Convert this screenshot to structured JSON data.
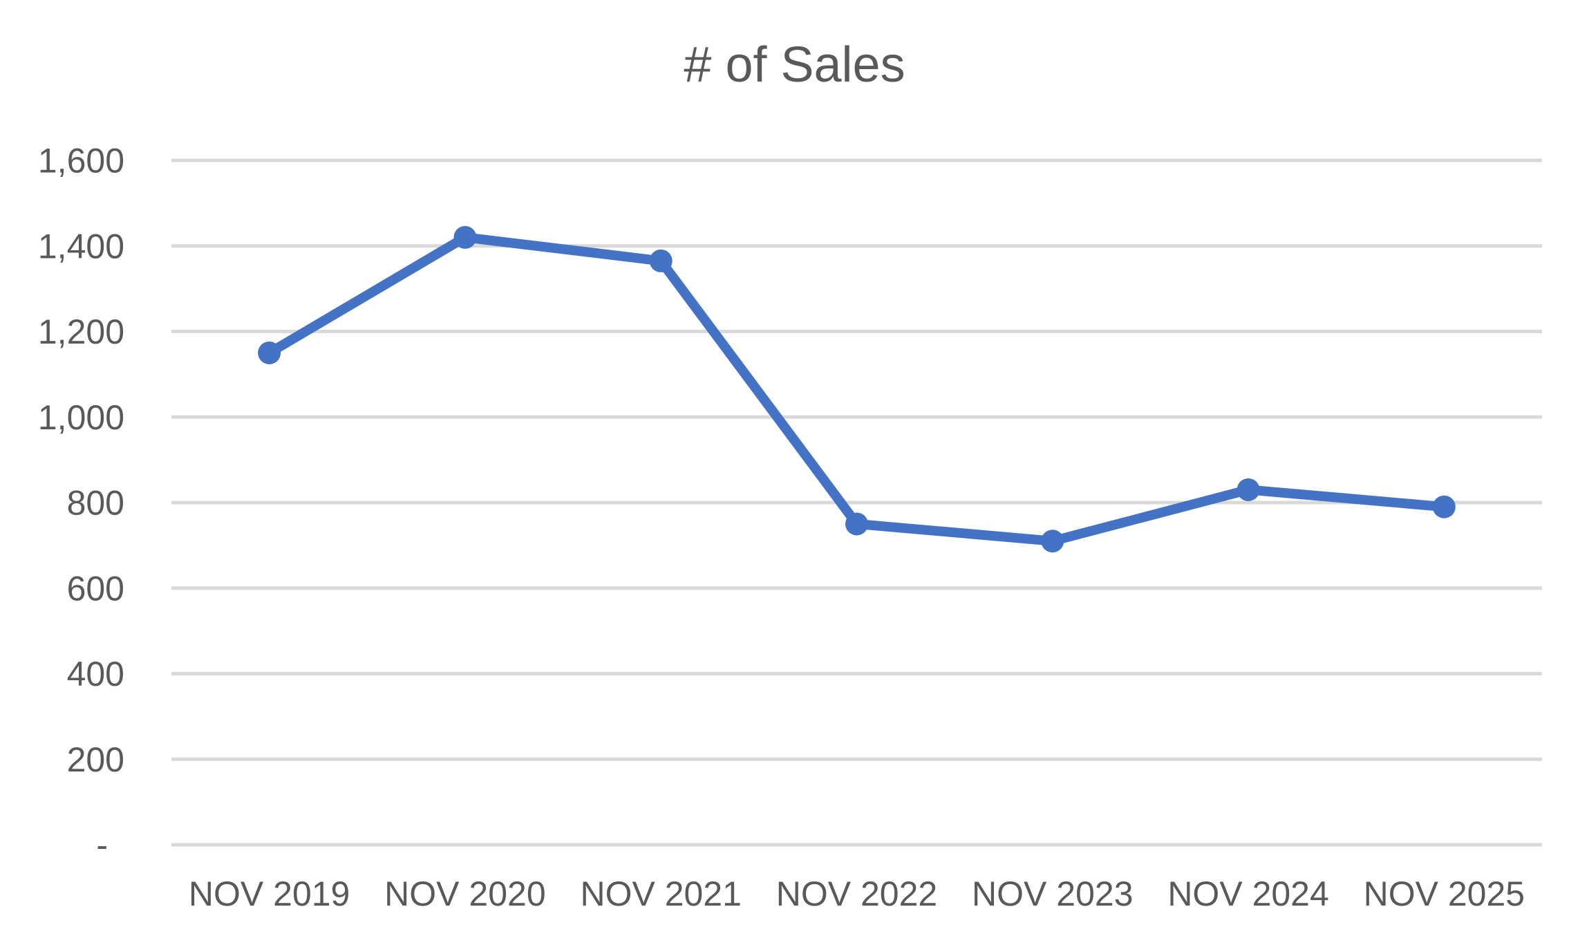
{
  "chart_data": {
    "type": "line",
    "title": "# of Sales",
    "categories": [
      "NOV 2019",
      "NOV 2020",
      "NOV 2021",
      "NOV 2022",
      "NOV 2023",
      "NOV 2024",
      "NOV 2025"
    ],
    "series": [
      {
        "name": "# of Sales",
        "values": [
          1150,
          1420,
          1365,
          750,
          710,
          830,
          790
        ]
      }
    ],
    "xlabel": "",
    "ylabel": "",
    "ylim": [
      0,
      1600
    ],
    "ytick_step": 200,
    "ytick_labels": [
      "-",
      "200",
      "400",
      "600",
      "800",
      "1,000",
      "1,200",
      "1,400",
      "1,600"
    ],
    "grid": "horizontal",
    "legend": "none",
    "marker": "circle",
    "colors": {
      "line": "#4472C4",
      "marker": "#4472C4",
      "gridline": "#D9D9D9",
      "axis_line": "#D9D9D9",
      "text": "#595959",
      "title": "#595959",
      "background": "#FFFFFF"
    }
  }
}
